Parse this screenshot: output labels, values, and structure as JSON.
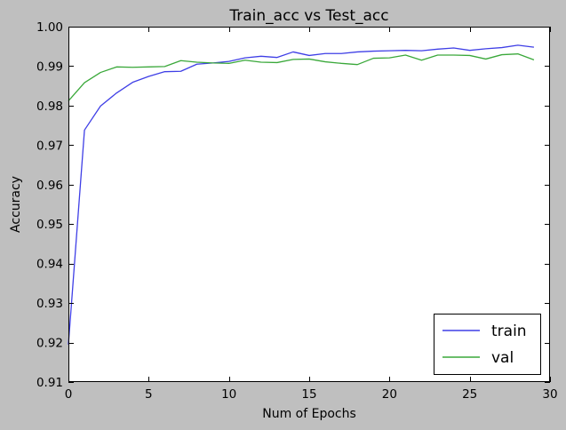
{
  "chart_data": {
    "type": "line",
    "title": "Train_acc vs Test_acc",
    "xlabel": "Num of Epochs",
    "ylabel": "Accuracy",
    "xlim": [
      0,
      30
    ],
    "ylim": [
      0.91,
      1.0
    ],
    "xticks": [
      0,
      5,
      10,
      15,
      20,
      25,
      30
    ],
    "xtick_labels": [
      "0",
      "5",
      "10",
      "15",
      "20",
      "25",
      "30"
    ],
    "yticks": [
      0.91,
      0.92,
      0.93,
      0.94,
      0.95,
      0.96,
      0.97,
      0.98,
      0.99,
      1.0
    ],
    "ytick_labels": [
      "0.91",
      "0.92",
      "0.93",
      "0.94",
      "0.95",
      "0.96",
      "0.97",
      "0.98",
      "0.99",
      "1.00"
    ],
    "grid": false,
    "legend_position": "lower-right",
    "x": [
      0,
      1,
      2,
      3,
      4,
      5,
      6,
      7,
      8,
      9,
      10,
      11,
      12,
      13,
      14,
      15,
      16,
      17,
      18,
      19,
      20,
      21,
      22,
      23,
      24,
      25,
      26,
      27,
      28,
      29
    ],
    "series": [
      {
        "name": "train",
        "color": "#3f3fe6",
        "values": [
          0.9195,
          0.9738,
          0.9799,
          0.9832,
          0.9859,
          0.9874,
          0.9886,
          0.9887,
          0.9905,
          0.9908,
          0.9912,
          0.9921,
          0.9925,
          0.9922,
          0.9936,
          0.9927,
          0.9932,
          0.9932,
          0.9936,
          0.9938,
          0.9939,
          0.994,
          0.9939,
          0.9943,
          0.9946,
          0.994,
          0.9944,
          0.9947,
          0.9953,
          0.9948
        ]
      },
      {
        "name": "val",
        "color": "#3aa83a",
        "values": [
          0.9812,
          0.9858,
          0.9884,
          0.9898,
          0.9897,
          0.9898,
          0.9899,
          0.9914,
          0.991,
          0.9908,
          0.9907,
          0.9915,
          0.991,
          0.9909,
          0.9917,
          0.9918,
          0.9911,
          0.9907,
          0.9904,
          0.992,
          0.9921,
          0.9928,
          0.9915,
          0.9928,
          0.9928,
          0.9927,
          0.9918,
          0.9929,
          0.9931,
          0.9916
        ]
      }
    ]
  }
}
